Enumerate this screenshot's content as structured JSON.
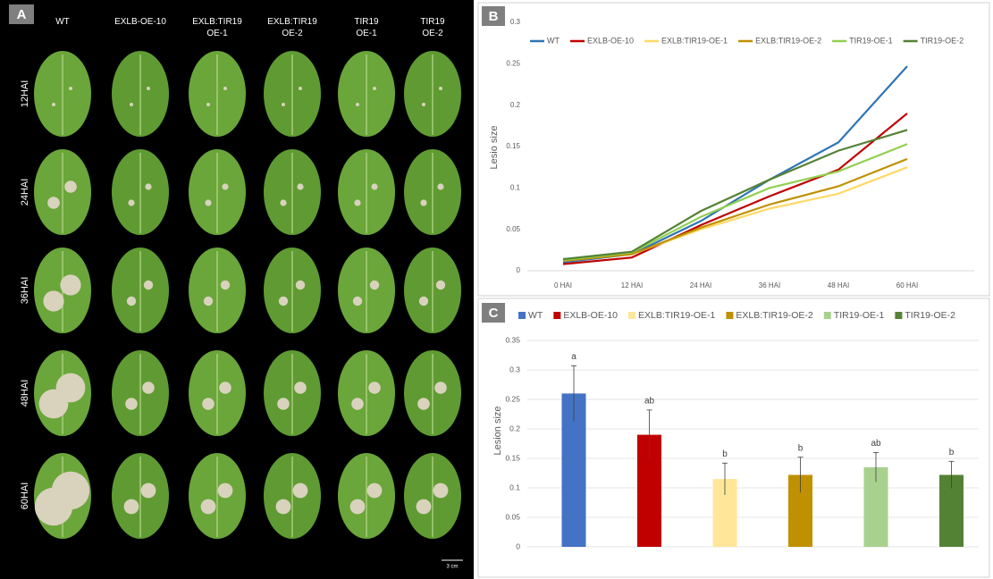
{
  "panel_a": {
    "label": "A",
    "columns": [
      "WT",
      "EXLB-OE-10",
      "EXLB:TIR19\nOE-1",
      "EXLB:TIR19\nOE-2",
      "TIR19\nOE-1",
      "TIR19\nOE-2"
    ],
    "rows": [
      "12HAI",
      "24HAI",
      "36HAI",
      "48HAI",
      "60HAI"
    ],
    "scale_bar": "3 cm"
  },
  "chart_data": [
    {
      "type": "line",
      "panel_label": "B",
      "y_label": "Lesio size",
      "categories": [
        "0 HAI",
        "12 HAI",
        "24 HAI",
        "36 HAI",
        "48 HAI",
        "60 HAI"
      ],
      "series": [
        {
          "name": "WT",
          "color": "#2e75b6",
          "values": [
            0.01,
            0.02,
            0.06,
            0.11,
            0.155,
            0.247
          ]
        },
        {
          "name": "EXLB-OE-10",
          "color": "#c00000",
          "values": [
            0.008,
            0.016,
            0.055,
            0.09,
            0.122,
            0.19
          ]
        },
        {
          "name": "EXLB:TIR19-OE-1",
          "color": "#ffd966",
          "values": [
            0.012,
            0.02,
            0.05,
            0.075,
            0.093,
            0.125
          ]
        },
        {
          "name": "EXLB:TIR19-OE-2",
          "color": "#bf9000",
          "values": [
            0.012,
            0.02,
            0.052,
            0.08,
            0.102,
            0.135
          ]
        },
        {
          "name": "TIR19-OE-1",
          "color": "#92d050",
          "values": [
            0.013,
            0.022,
            0.065,
            0.1,
            0.12,
            0.153
          ]
        },
        {
          "name": "TIR19-OE-2",
          "color": "#548235",
          "values": [
            0.014,
            0.023,
            0.072,
            0.11,
            0.145,
            0.17
          ]
        }
      ],
      "ylim": [
        0,
        0.3
      ],
      "yticks": [
        0,
        0.05,
        0.1,
        0.15,
        0.2,
        0.25,
        0.3
      ],
      "grid": false,
      "legend": "top"
    },
    {
      "type": "bar",
      "panel_label": "C",
      "y_label": "Lesion size",
      "series": [
        {
          "name": "WT",
          "color": "#4472c4",
          "values": [
            0.26
          ],
          "errors": [
            0.047
          ],
          "annotations": [
            "a"
          ]
        },
        {
          "name": "EXLB-OE-10",
          "color": "#c00000",
          "values": [
            0.19
          ],
          "errors": [
            0.042
          ],
          "annotations": [
            "ab"
          ]
        },
        {
          "name": "EXLB:TIR19-OE-1",
          "color": "#ffe699",
          "values": [
            0.115
          ],
          "errors": [
            0.027
          ],
          "annotations": [
            "b"
          ]
        },
        {
          "name": "EXLB:TIR19-OE-2",
          "color": "#bf9000",
          "values": [
            0.122
          ],
          "errors": [
            0.03
          ],
          "annotations": [
            "b"
          ]
        },
        {
          "name": "TIR19-OE-1",
          "color": "#a9d18e",
          "values": [
            0.135
          ],
          "errors": [
            0.025
          ],
          "annotations": [
            "ab"
          ]
        },
        {
          "name": "TIR19-OE-2",
          "color": "#548235",
          "values": [
            0.122
          ],
          "errors": [
            0.023
          ],
          "annotations": [
            "b"
          ]
        }
      ],
      "ylim": [
        0,
        0.35
      ],
      "yticks": [
        0,
        0.05,
        0.1,
        0.15,
        0.2,
        0.25,
        0.3,
        0.35
      ],
      "grid": true,
      "legend": "top"
    }
  ]
}
